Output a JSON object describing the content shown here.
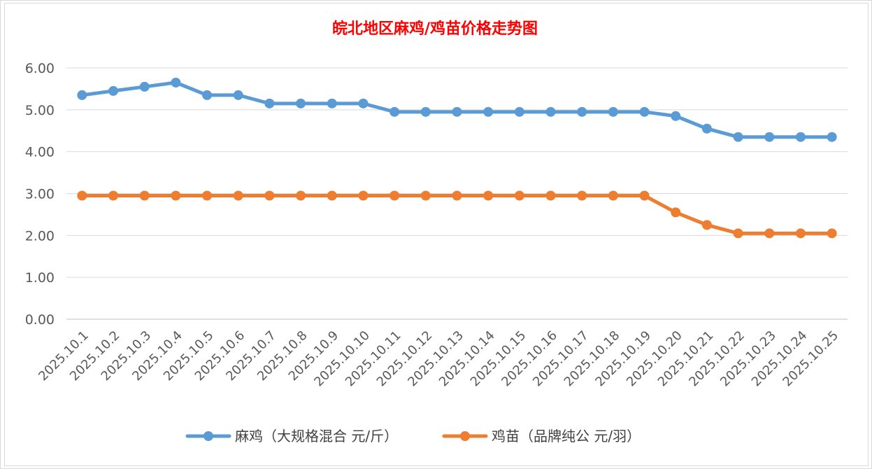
{
  "chart_data": {
    "type": "line",
    "title": "皖北地区麻鸡/鸡苗价格走势图",
    "xlabel": "",
    "ylabel": "",
    "ylim": [
      0,
      6
    ],
    "yticks": [
      "0.00",
      "1.00",
      "2.00",
      "3.00",
      "4.00",
      "5.00",
      "6.00"
    ],
    "grid": true,
    "legend_position": "bottom",
    "categories": [
      "2025.10.1",
      "2025.10.2",
      "2025.10.3",
      "2025.10.4",
      "2025.10.5",
      "2025.10.6",
      "2025.10.7",
      "2025.10.8",
      "2025.10.9",
      "2025.10.10",
      "2025.10.11",
      "2025.10.12",
      "2025.10.13",
      "2025.10.14",
      "2025.10.15",
      "2025.10.16",
      "2025.10.17",
      "2025.10.18",
      "2025.10.19",
      "2025.10.20",
      "2025.10.21",
      "2025.10.22",
      "2025.10.23",
      "2025.10.24",
      "2025.10.25"
    ],
    "series": [
      {
        "name": "麻鸡（大规格混合 元/斤）",
        "color": "#5b9bd5",
        "values": [
          5.35,
          5.45,
          5.55,
          5.65,
          5.35,
          5.35,
          5.15,
          5.15,
          5.15,
          5.15,
          4.95,
          4.95,
          4.95,
          4.95,
          4.95,
          4.95,
          4.95,
          4.95,
          4.95,
          4.85,
          4.55,
          4.35,
          4.35,
          4.35,
          4.35
        ]
      },
      {
        "name": "鸡苗（品牌纯公 元/羽）",
        "color": "#ed7d31",
        "values": [
          2.95,
          2.95,
          2.95,
          2.95,
          2.95,
          2.95,
          2.95,
          2.95,
          2.95,
          2.95,
          2.95,
          2.95,
          2.95,
          2.95,
          2.95,
          2.95,
          2.95,
          2.95,
          2.95,
          2.55,
          2.25,
          2.05,
          2.05,
          2.05,
          2.05
        ]
      }
    ]
  }
}
